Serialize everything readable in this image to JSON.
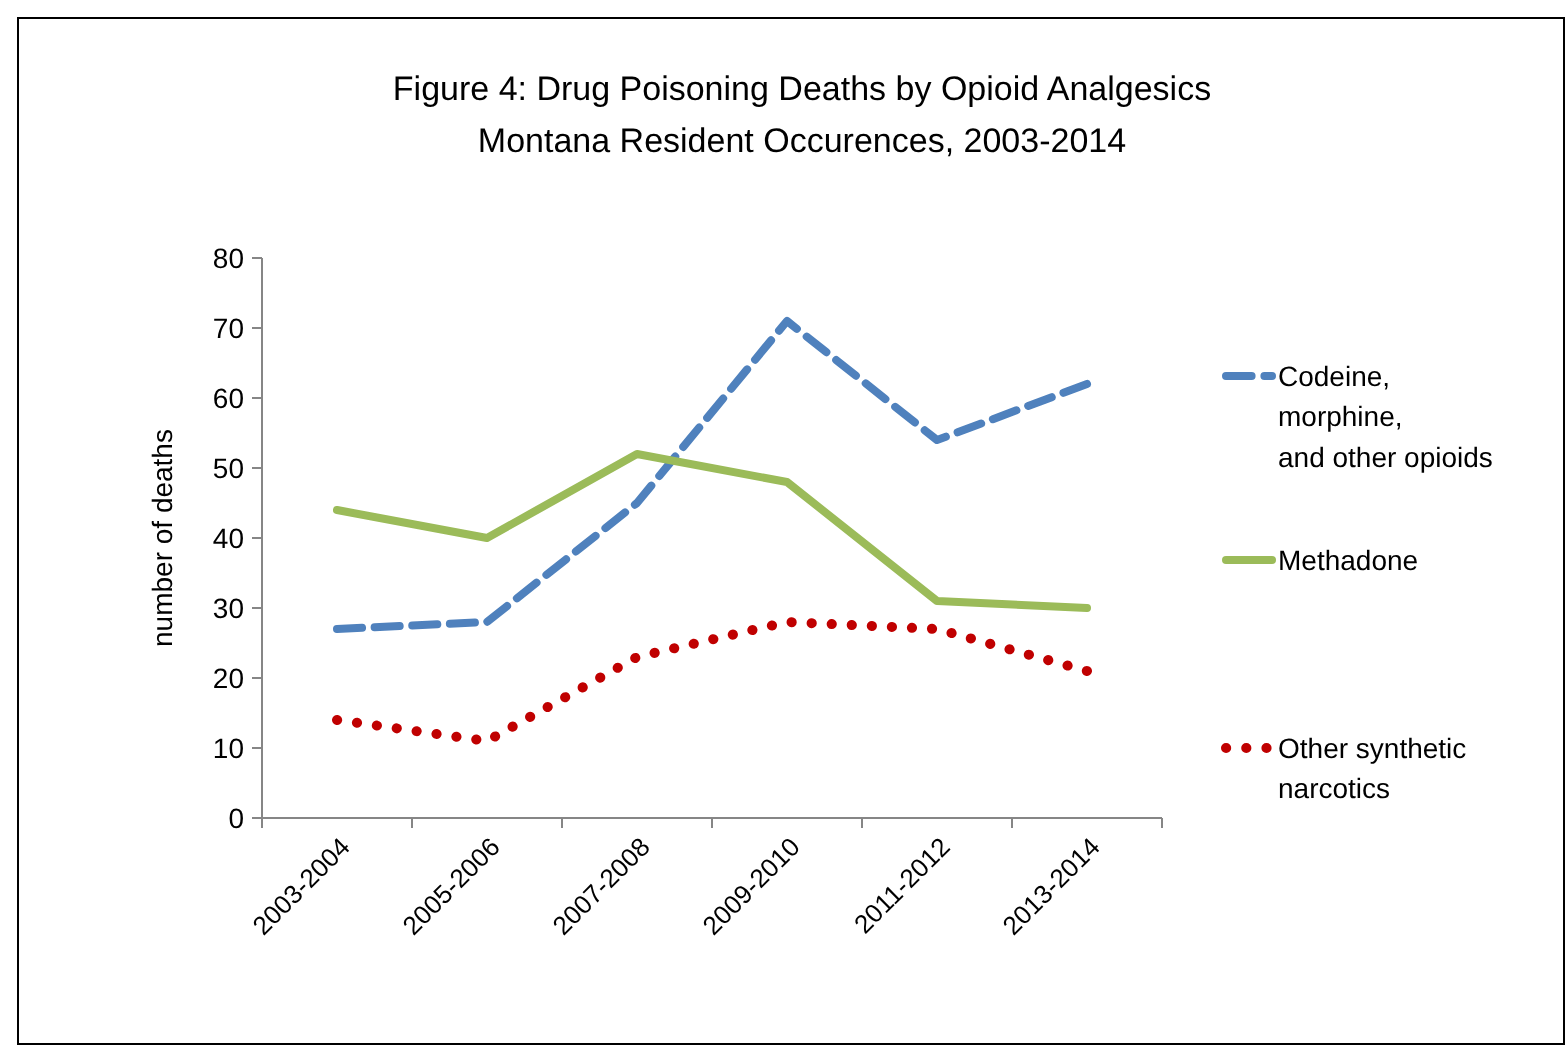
{
  "chart_data": {
    "type": "line",
    "title": "Figure 4: Drug Poisoning Deaths by Opioid Analgesics",
    "subtitle": "Montana Resident Occurences, 2003-2014",
    "ylabel": "number of deaths",
    "categories": [
      "2003-2004",
      "2005-2006",
      "2007-2008",
      "2009-2010",
      "2011-2012",
      "2013-2014"
    ],
    "ylim": [
      0,
      80
    ],
    "yticks": [
      0,
      10,
      20,
      30,
      40,
      50,
      60,
      70,
      80
    ],
    "legend": "right",
    "marker": "none",
    "series": [
      {
        "name": "Codeine,\nmorphine,\nand other opioids",
        "color": "#4f81bd",
        "line_style": "dashed",
        "values": [
          27,
          28,
          45,
          71,
          54,
          62
        ]
      },
      {
        "name": "Methadone",
        "color": "#9bbb59",
        "line_style": "solid",
        "values": [
          44,
          40,
          52,
          48,
          31,
          30
        ]
      },
      {
        "name": "Other synthetic\nnarcotics",
        "color": "#c00000",
        "line_style": "dotted",
        "values": [
          14,
          11,
          23,
          28,
          27,
          21
        ]
      }
    ]
  }
}
